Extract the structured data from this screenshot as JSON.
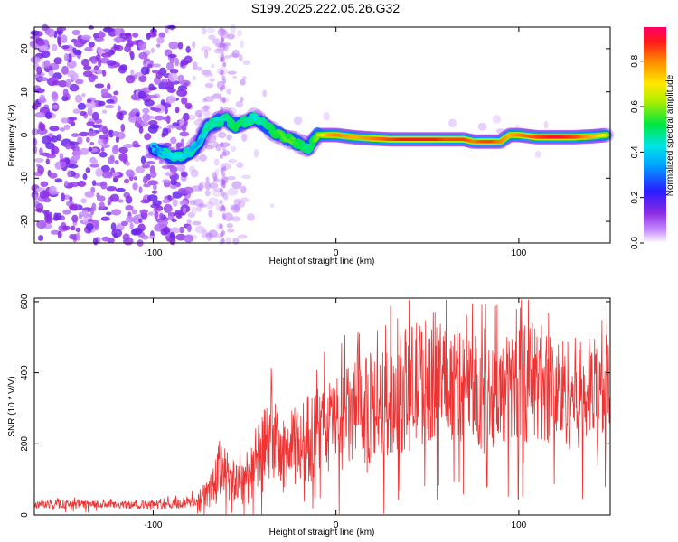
{
  "title": "S199.2025.222.05.26.G32",
  "chart_data": [
    {
      "type": "heatmap",
      "name": "spectrogram",
      "xlabel": "Height of straight line (km)",
      "ylabel": "Frequency (Hz)",
      "xlim": [
        -165,
        150
      ],
      "ylim": [
        -25,
        25
      ],
      "xticks": [
        -100,
        0,
        100
      ],
      "yticks": [
        -20,
        -10,
        0,
        10,
        20
      ],
      "colorbar": {
        "label": "Normalized spectral amplitude",
        "range": [
          0.0,
          0.95
        ],
        "ticks": [
          0.0,
          0.2,
          0.4,
          0.6,
          0.8
        ]
      },
      "ridge": {
        "description": "Doppler frequency trace of peak amplitude",
        "x": [
          -100,
          -95,
          -90,
          -85,
          -80,
          -75,
          -70,
          -65,
          -60,
          -55,
          -50,
          -45,
          -40,
          -35,
          -30,
          -25,
          -20,
          -15,
          -10,
          -5,
          0,
          10,
          20,
          30,
          40,
          50,
          60,
          70,
          75,
          80,
          85,
          90,
          95,
          100,
          110,
          120,
          130,
          140,
          148
        ],
        "y": [
          -3,
          -4,
          -5,
          -5,
          -4,
          -2,
          2,
          3,
          4,
          2,
          3,
          4,
          3,
          1,
          0,
          -1,
          -2,
          -3,
          0,
          0,
          0,
          -0.5,
          -0.8,
          -1,
          -1,
          -1,
          -1,
          -1,
          -1.5,
          -1.5,
          -1.5,
          -1.5,
          0,
          0,
          -0.5,
          -0.5,
          -0.5,
          -0.3,
          0
        ],
        "amplitude": [
          0.3,
          0.4,
          0.45,
          0.45,
          0.4,
          0.35,
          0.5,
          0.45,
          0.5,
          0.55,
          0.5,
          0.45,
          0.5,
          0.55,
          0.6,
          0.6,
          0.55,
          0.5,
          0.65,
          0.8,
          0.85,
          0.8,
          0.85,
          0.9,
          0.95,
          0.95,
          0.9,
          0.9,
          0.85,
          0.9,
          0.9,
          0.85,
          0.8,
          0.85,
          0.9,
          0.95,
          0.9,
          0.8,
          0.7
        ]
      }
    },
    {
      "type": "line",
      "name": "snr",
      "xlabel": "Height of straight line (km)",
      "ylabel": "SNR (10 * V/V)",
      "xlim": [
        -165,
        150
      ],
      "ylim": [
        0,
        610
      ],
      "xticks": [
        -100,
        0,
        100
      ],
      "yticks": [
        0,
        200,
        400,
        600
      ],
      "color": "#ee3333",
      "envelope": {
        "x": [
          -165,
          -140,
          -120,
          -100,
          -85,
          -75,
          -68,
          -62,
          -58,
          -50,
          -40,
          -35,
          -30,
          -20,
          -10,
          0,
          10,
          20,
          30,
          40,
          50,
          55,
          60,
          70,
          80,
          90,
          100,
          110,
          120,
          130,
          140,
          150
        ],
        "mean": [
          28,
          30,
          28,
          28,
          32,
          40,
          70,
          150,
          90,
          100,
          180,
          230,
          160,
          200,
          230,
          260,
          280,
          300,
          320,
          360,
          380,
          400,
          380,
          360,
          350,
          340,
          370,
          380,
          350,
          340,
          350,
          360
        ],
        "spread": [
          10,
          12,
          10,
          12,
          15,
          20,
          50,
          100,
          60,
          80,
          110,
          120,
          100,
          120,
          130,
          140,
          150,
          150,
          160,
          180,
          180,
          180,
          170,
          160,
          160,
          150,
          170,
          170,
          160,
          160,
          150,
          150
        ]
      }
    }
  ]
}
